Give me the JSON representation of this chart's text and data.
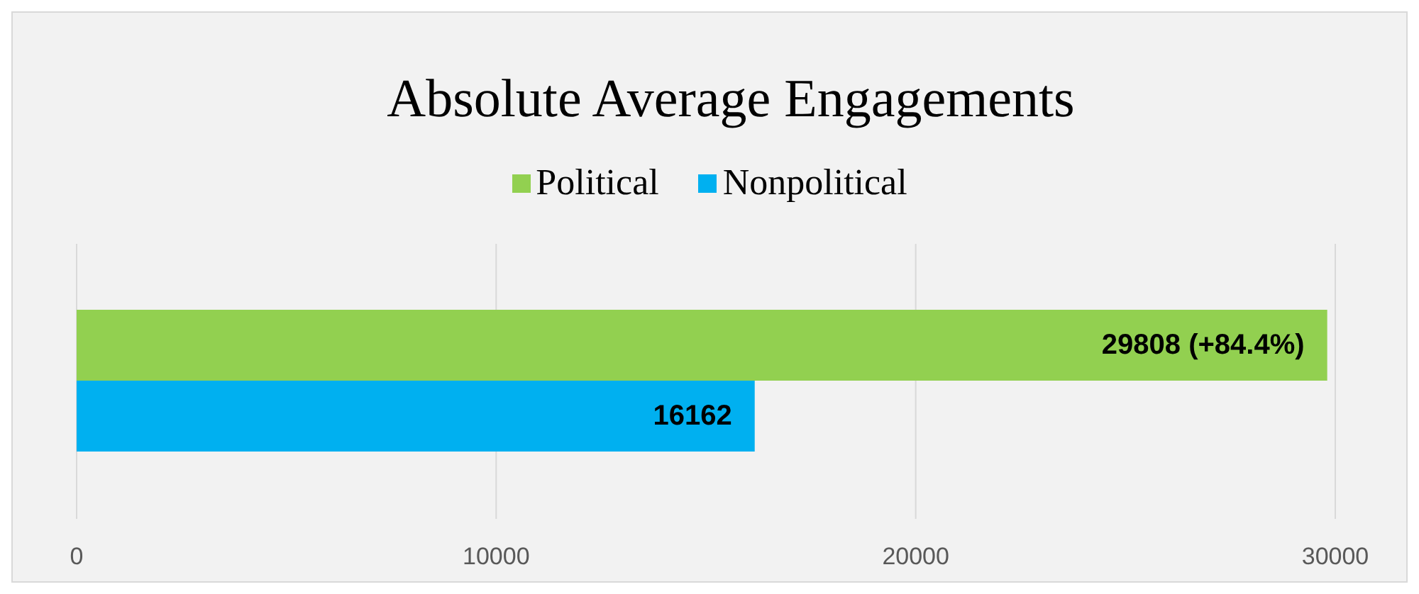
{
  "chart_data": {
    "type": "bar",
    "orientation": "horizontal",
    "title": "Absolute Average Engagements",
    "categories": [
      null
    ],
    "series": [
      {
        "name": "Political",
        "color": "#92d050",
        "values": [
          29808
        ],
        "value_labels": [
          "29808 (+84.4%)"
        ]
      },
      {
        "name": "Nonpolitical",
        "color": "#00b0f0",
        "values": [
          16162
        ],
        "value_labels": [
          "16162"
        ]
      }
    ],
    "xlim": [
      0,
      30000
    ],
    "xticks": [
      0,
      10000,
      20000,
      30000
    ],
    "grid": "x",
    "legend": "top"
  }
}
